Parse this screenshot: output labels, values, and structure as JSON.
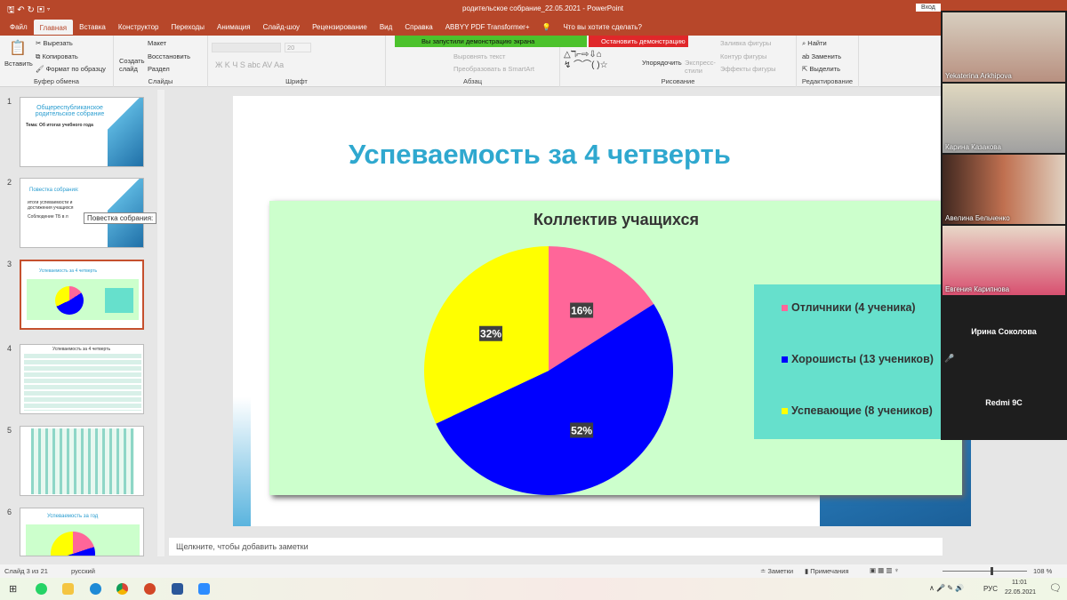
{
  "window": {
    "title": "родительское собрание_22.05.2021  -  PowerPoint",
    "signin": "Вход"
  },
  "tabs": [
    "Файл",
    "Главная",
    "Вставка",
    "Конструктор",
    "Переходы",
    "Анимация",
    "Слайд-шоу",
    "Рецензирование",
    "Вид",
    "Справка",
    "ABBYY PDF Transformer+"
  ],
  "active_tab": "Главная",
  "tell_me": "Что вы хотите сделать?",
  "ribbon": {
    "clipboard": {
      "paste": "Вставить",
      "cut": "Вырезать",
      "copy": "Копировать",
      "format": "Формат по образцу",
      "label": "Буфер обмена"
    },
    "slides": {
      "new": "Создать слайд",
      "layout": "Макет",
      "reset": "Восстановить",
      "section": "Раздел",
      "label": "Слайды"
    },
    "font": {
      "size": "20",
      "label": "Шрифт"
    },
    "paragraph": {
      "align": "Выровнять текст",
      "smartart": "Преобразовать в SmartArt",
      "label": "Абзац"
    },
    "drawing": {
      "arrange": "Упорядочить",
      "styles": "Экспресс-стили",
      "fill": "Заливка фигуры",
      "outline": "Контур фигуры",
      "effects": "Эффекты фигуры",
      "label": "Рисование"
    },
    "editing": {
      "find": "Найти",
      "replace": "Заменить",
      "select": "Выделить",
      "label": "Редактирование"
    }
  },
  "screenshare": {
    "status": "Вы запустили демонстрацию экрана",
    "stop": "Остановить демонстрацию"
  },
  "thumbnails": [
    {
      "num": "1",
      "title": "Общереспубликанское родительское собрание",
      "subtitle": "Тема: Об итогах учебного года"
    },
    {
      "num": "2",
      "title": "Повестка собрания:",
      "bullets": [
        "итоги успеваемости и достижения учащихся",
        "Соблюдение ТБ в л"
      ],
      "tooltip": "Повестка собрания:"
    },
    {
      "num": "3",
      "title": "Успеваемость за 4 четверть"
    },
    {
      "num": "4",
      "title": "Успеваемость за 4 четверть"
    },
    {
      "num": "5"
    },
    {
      "num": "6",
      "title": "Успеваемость за год"
    }
  ],
  "slide": {
    "title": "Успеваемость за 4 четверть"
  },
  "chart_data": {
    "type": "pie",
    "title": "Коллектив учащихся",
    "categories": [
      "Отличники (4 ученика)",
      "Хорошисты (13 учеников)",
      "Успевающие (8 учеников)"
    ],
    "values": [
      16,
      52,
      32
    ],
    "labels": [
      "16%",
      "52%",
      "32%"
    ],
    "colors": [
      "#ff6699",
      "#0000ff",
      "#ffff00"
    ],
    "legend": "right",
    "background": "#ccffcc",
    "legend_background": "#66e0cc"
  },
  "notes": {
    "placeholder": "Щелкните, чтобы добавить заметки"
  },
  "status": {
    "slide": "Слайд 3 из 21",
    "lang": "русский",
    "notes": "Заметки",
    "comments": "Примечания",
    "zoom": "108 %"
  },
  "taskbar": {
    "lang": "РУС",
    "time": "11:01",
    "date": "22.05.2021"
  },
  "participants": [
    {
      "name": "Yekaterina Arkhipova",
      "video": true
    },
    {
      "name": "Карина Казакова",
      "video": true
    },
    {
      "name": "Авелина Бельченко",
      "video": true
    },
    {
      "name": "Евгения Карипнова",
      "video": true
    },
    {
      "name": "Ирина Соколова",
      "video": false
    },
    {
      "name": "Redmi 9C",
      "video": false
    }
  ]
}
